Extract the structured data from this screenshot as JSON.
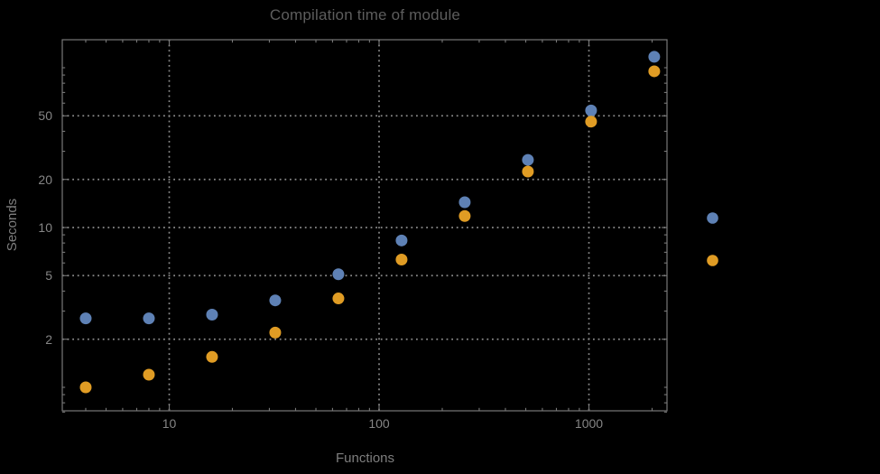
{
  "chart_data": {
    "type": "scatter",
    "title": "Compilation time of module",
    "xlabel": "Functions",
    "ylabel": "Seconds",
    "x_scale": "log",
    "y_scale": "log",
    "xlim": [
      3.1,
      2355
    ],
    "ylim": [
      0.69,
      150
    ],
    "grid": {
      "style": "dotted",
      "x_values": [
        10,
        100,
        1000
      ],
      "y_values": [
        2,
        5,
        10,
        20,
        50
      ]
    },
    "x_ticks": [
      {
        "value": 10,
        "label": "10"
      },
      {
        "value": 100,
        "label": "100"
      },
      {
        "value": 1000,
        "label": "1000"
      }
    ],
    "y_ticks": [
      {
        "value": 50,
        "label": "50"
      },
      {
        "value": 20,
        "label": "20"
      },
      {
        "value": 10,
        "label": "10"
      },
      {
        "value": 5,
        "label": "5"
      },
      {
        "value": 2,
        "label": "2"
      }
    ],
    "x": [
      4,
      8,
      16,
      32,
      64,
      128,
      256,
      512,
      1024,
      2048
    ],
    "series": [
      {
        "name": "series-1",
        "color": "#5e81b5",
        "values": [
          2.7,
          2.7,
          2.85,
          3.5,
          5.1,
          8.3,
          14.4,
          26.5,
          54,
          117
        ]
      },
      {
        "name": "series-2",
        "color": "#e09c24",
        "values": [
          1.0,
          1.2,
          1.55,
          2.2,
          3.6,
          6.3,
          11.8,
          22.4,
          46,
          95
        ]
      }
    ],
    "legend": {
      "position": "right-outside",
      "items": [
        {
          "series": "series-1",
          "color": "#5e81b5",
          "label": ""
        },
        {
          "series": "series-2",
          "color": "#e09c24",
          "label": ""
        }
      ]
    }
  },
  "colors": {
    "background": "#000000",
    "frame": "#787878",
    "grid": "#8a8a8a",
    "title": "#5d5d5d",
    "tick_label": "#858585",
    "axis_label": "#7e7e7e"
  }
}
